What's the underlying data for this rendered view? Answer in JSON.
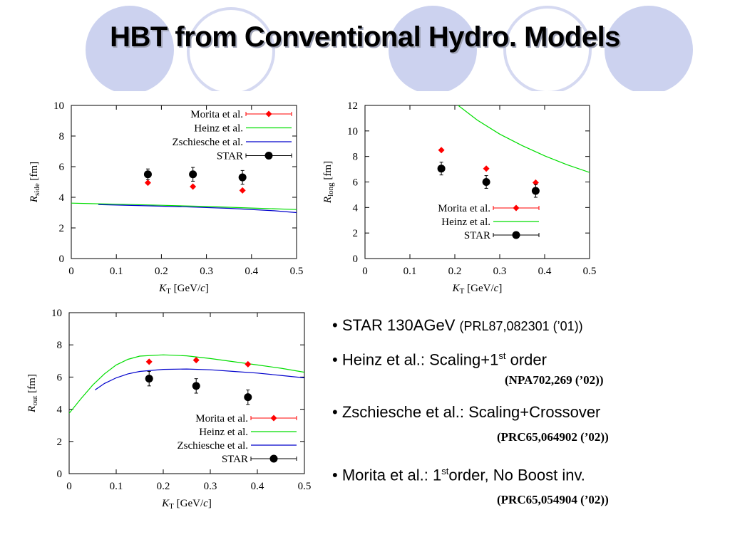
{
  "title": "HBT from Conventional Hydro. Models",
  "colors": {
    "morita": "#ff0000",
    "heinz": "#00dd00",
    "zschiesche": "#0000cc",
    "star": "#000000",
    "decor": "#ccd2ef"
  },
  "chart_data": [
    {
      "type": "scatter",
      "name": "rside",
      "ylabel_main": "R",
      "ylabel_sub": "side",
      "ylabel_unit": " [fm]",
      "xlabel_main": "K",
      "xlabel_sub": "T",
      "xlabel_unit": " [GeV/",
      "xlabel_c": "c",
      "xlabel_close": "]",
      "xlim": [
        0,
        0.5
      ],
      "ylim": [
        0,
        10
      ],
      "xticks": [
        "0",
        "0.1",
        "0.2",
        "0.3",
        "0.4",
        "0.5"
      ],
      "yticks": [
        "0",
        "2",
        "4",
        "6",
        "8",
        "10"
      ],
      "legend": [
        "Morita et al.",
        "Heinz et al.",
        "Zschiesche et al.",
        "STAR"
      ],
      "legend_position": "top-right",
      "morita": {
        "x": [
          0.17,
          0.27,
          0.38
        ],
        "y": [
          4.95,
          4.7,
          4.45
        ]
      },
      "star": {
        "x": [
          0.17,
          0.27,
          0.38
        ],
        "y": [
          5.5,
          5.5,
          5.3
        ],
        "err": [
          0.35,
          0.45,
          0.45
        ]
      },
      "heinz": {
        "x": [
          0,
          0.1,
          0.2,
          0.3,
          0.4,
          0.5
        ],
        "y": [
          3.62,
          3.55,
          3.48,
          3.4,
          3.3,
          3.2
        ]
      },
      "zschiesche": {
        "x": [
          0.06,
          0.15,
          0.25,
          0.35,
          0.45,
          0.5
        ],
        "y": [
          3.52,
          3.46,
          3.38,
          3.28,
          3.12,
          3.0
        ]
      }
    },
    {
      "type": "scatter",
      "name": "rlong",
      "ylabel_main": "R",
      "ylabel_sub": "long",
      "ylabel_unit": " [fm]",
      "xlabel_main": "K",
      "xlabel_sub": "T",
      "xlabel_unit": " [GeV/",
      "xlabel_c": "c",
      "xlabel_close": "]",
      "xlim": [
        0,
        0.5
      ],
      "ylim": [
        0,
        12
      ],
      "xticks": [
        "0",
        "0.1",
        "0.2",
        "0.3",
        "0.4",
        "0.5"
      ],
      "yticks": [
        "0",
        "2",
        "4",
        "6",
        "8",
        "10",
        "12"
      ],
      "legend": [
        "Morita et al.",
        "Heinz et al.",
        "STAR"
      ],
      "legend_position": "bottom-right",
      "morita": {
        "x": [
          0.17,
          0.27,
          0.38
        ],
        "y": [
          8.5,
          7.05,
          5.95
        ]
      },
      "star": {
        "x": [
          0.17,
          0.27,
          0.38
        ],
        "y": [
          7.05,
          6.0,
          5.3
        ],
        "err": [
          0.5,
          0.5,
          0.5
        ]
      },
      "heinz": {
        "x": [
          0.2,
          0.25,
          0.3,
          0.35,
          0.4,
          0.45,
          0.5
        ],
        "y": [
          12.2,
          10.85,
          9.75,
          8.85,
          8.05,
          7.35,
          6.75
        ]
      }
    },
    {
      "type": "scatter",
      "name": "rout",
      "ylabel_main": "R",
      "ylabel_sub": "out",
      "ylabel_unit": " [fm]",
      "xlabel_main": "K",
      "xlabel_sub": "T",
      "xlabel_unit": " [GeV/",
      "xlabel_c": "c",
      "xlabel_close": "]",
      "xlim": [
        0,
        0.5
      ],
      "ylim": [
        0,
        10
      ],
      "xticks": [
        "0",
        "0.1",
        "0.2",
        "0.3",
        "0.4",
        "0.5"
      ],
      "yticks": [
        "0",
        "2",
        "4",
        "6",
        "8",
        "10"
      ],
      "legend": [
        "Morita et al.",
        "Heinz et al.",
        "Zschiesche et al.",
        "STAR"
      ],
      "legend_position": "bottom-right",
      "morita": {
        "x": [
          0.17,
          0.27,
          0.38
        ],
        "y": [
          6.95,
          7.05,
          6.8
        ]
      },
      "star": {
        "x": [
          0.17,
          0.27,
          0.38
        ],
        "y": [
          5.9,
          5.45,
          4.75
        ],
        "err": [
          0.45,
          0.45,
          0.45
        ]
      },
      "heinz": {
        "x": [
          0,
          0.025,
          0.05,
          0.075,
          0.1,
          0.125,
          0.15,
          0.2,
          0.25,
          0.3,
          0.35,
          0.4,
          0.45,
          0.5
        ],
        "y": [
          3.75,
          4.65,
          5.5,
          6.2,
          6.75,
          7.1,
          7.3,
          7.38,
          7.32,
          7.15,
          6.95,
          6.75,
          6.55,
          6.3
        ]
      },
      "zschiesche": {
        "x": [
          0.055,
          0.075,
          0.1,
          0.125,
          0.15,
          0.2,
          0.25,
          0.3,
          0.35,
          0.4,
          0.45,
          0.5
        ],
        "y": [
          5.2,
          5.6,
          5.95,
          6.2,
          6.35,
          6.48,
          6.5,
          6.45,
          6.35,
          6.25,
          6.1,
          5.95
        ]
      }
    }
  ],
  "bullets": [
    {
      "text": "STAR 130AGeV ",
      "small": "(PRL87,082301 (’01))"
    },
    {
      "text": "Heinz et al.: Scaling+1",
      "sup": "st",
      "after": " order",
      "ref": "(NPA702,269 (’02))"
    },
    {
      "text": "Zschiesche et al.: Scaling+Crossover",
      "ref": "(PRC65,064902 (’02))"
    },
    {
      "text": "Morita et al.: 1",
      "sup": "st",
      "after": "order, No Boost inv.",
      "ref": "(PRC65,054904 (’02))"
    }
  ]
}
